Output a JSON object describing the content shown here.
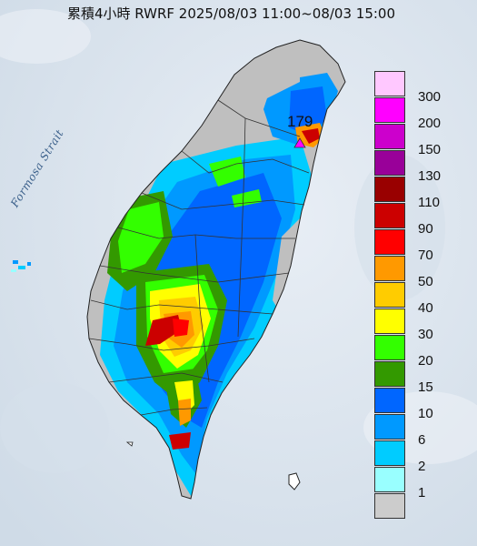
{
  "title": "累積4小時 RWRF 2025/08/03 11:00~08/03 15:00",
  "strait_label": "Formosa Strait",
  "max_point": {
    "value": "179",
    "marker": "triangle-marker"
  },
  "legend": {
    "items": [
      {
        "label": "300",
        "color": "#ffc8ff"
      },
      {
        "label": "200",
        "color": "#ff00ff"
      },
      {
        "label": "150",
        "color": "#cc00cc"
      },
      {
        "label": "130",
        "color": "#990099"
      },
      {
        "label": "110",
        "color": "#990000"
      },
      {
        "label": "90",
        "color": "#cc0000"
      },
      {
        "label": "70",
        "color": "#ff0000"
      },
      {
        "label": "50",
        "color": "#ff9900"
      },
      {
        "label": "40",
        "color": "#ffcc00"
      },
      {
        "label": "30",
        "color": "#ffff00"
      },
      {
        "label": "20",
        "color": "#33ff00"
      },
      {
        "label": "15",
        "color": "#339900"
      },
      {
        "label": "10",
        "color": "#0066ff"
      },
      {
        "label": "6",
        "color": "#0099ff"
      },
      {
        "label": "2",
        "color": "#00ccff"
      },
      {
        "label": "1",
        "color": "#99ffff"
      },
      {
        "label": "",
        "color": "#cccccc"
      }
    ]
  },
  "colors": {
    "sea": "#dfe7ef",
    "land_dry": "#bfbfbf",
    "boundary": "#333333"
  }
}
